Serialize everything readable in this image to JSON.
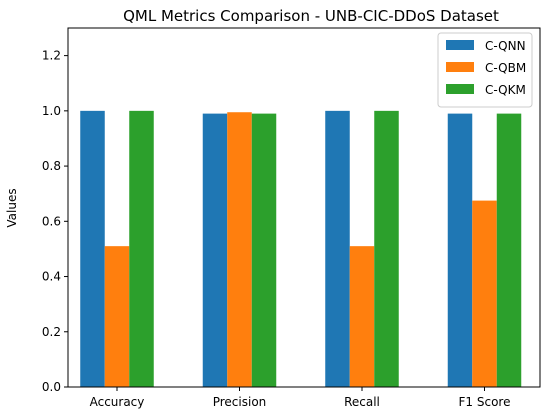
{
  "chart_data": {
    "type": "bar",
    "title": "QML Metrics Comparison - UNB-CIC-DDoS Dataset",
    "xlabel": "",
    "ylabel": "Values",
    "categories": [
      "Accuracy",
      "Precision",
      "Recall",
      "F1 Score"
    ],
    "series": [
      {
        "name": "C-QNN",
        "color": "#1f77b4",
        "values": [
          1.0,
          0.99,
          1.0,
          0.99
        ]
      },
      {
        "name": "C-QBM",
        "color": "#ff7f0e",
        "values": [
          0.51,
          0.995,
          0.51,
          0.675
        ]
      },
      {
        "name": "C-QKM",
        "color": "#2ca02c",
        "values": [
          1.0,
          0.99,
          1.0,
          0.99
        ]
      }
    ],
    "ylim": [
      0,
      1.3
    ],
    "yticks": [
      "0.0",
      "0.2",
      "0.4",
      "0.6",
      "0.8",
      "1.0",
      "1.2"
    ],
    "grid": false,
    "legend_position": "top-right"
  }
}
